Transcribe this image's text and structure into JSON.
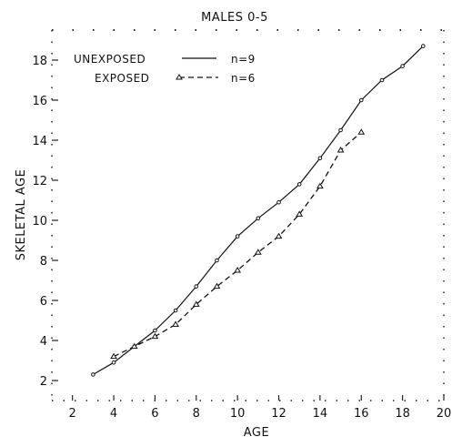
{
  "chart_data": {
    "type": "line",
    "title": "MALES 0-5",
    "xlabel": "AGE",
    "ylabel": "SKELETAL AGE",
    "xlim": [
      1,
      20
    ],
    "ylim": [
      1,
      19.5
    ],
    "xticks": [
      "2",
      "4",
      "6",
      "8",
      "10",
      "12",
      "14",
      "16",
      "18",
      "20"
    ],
    "yticks": [
      "2",
      "4",
      "6",
      "8",
      "10",
      "12",
      "14",
      "16",
      "18"
    ],
    "grid": false,
    "legend_position": "top-left",
    "series": [
      {
        "name": "UNEXPOSED",
        "n_label": "n=9",
        "style": "solid",
        "marker": "circle",
        "x": [
          3,
          4,
          5,
          6,
          7,
          8,
          9,
          10,
          11,
          12,
          13,
          14,
          15,
          16,
          17,
          18,
          19
        ],
        "y": [
          2.3,
          2.9,
          3.7,
          4.5,
          5.5,
          6.7,
          8.0,
          9.2,
          10.1,
          10.9,
          11.8,
          13.1,
          14.5,
          16.0,
          17.0,
          17.7,
          18.7
        ]
      },
      {
        "name": "EXPOSED",
        "n_label": "n=6",
        "style": "dashed",
        "marker": "triangle",
        "x": [
          4,
          5,
          6,
          7,
          8,
          9,
          10,
          11,
          12,
          13,
          14,
          15,
          16
        ],
        "y": [
          3.2,
          3.7,
          4.2,
          4.8,
          5.8,
          6.7,
          7.5,
          8.4,
          9.2,
          10.3,
          11.7,
          13.5,
          14.4
        ]
      }
    ]
  }
}
